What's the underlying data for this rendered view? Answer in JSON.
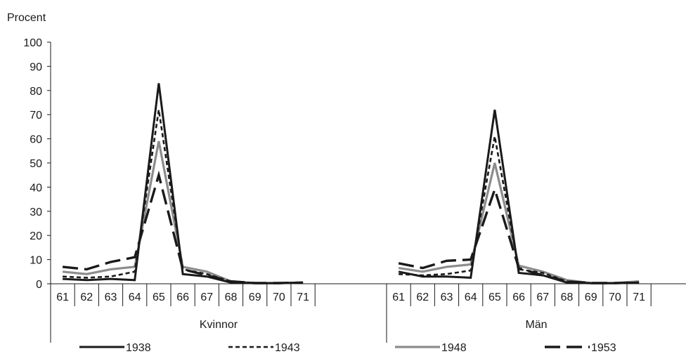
{
  "chart_data": {
    "type": "line",
    "ylabel": "Procent",
    "ylim": [
      0,
      100
    ],
    "yticks": [
      0,
      10,
      20,
      30,
      40,
      50,
      60,
      70,
      80,
      90,
      100
    ],
    "grid": false,
    "legend_position": "bottom",
    "panels": [
      {
        "name": "Kvinnor",
        "x": [
          "61",
          "62",
          "63",
          "64",
          "65",
          "66",
          "67",
          "68",
          "69",
          "70",
          "71"
        ],
        "series": [
          {
            "name": "1938",
            "values": [
              2,
              1.5,
              2,
              1.5,
              83,
              4,
              3,
              0.5,
              0.2,
              0.2,
              0.5
            ]
          },
          {
            "name": "1943",
            "values": [
              3,
              2.5,
              3,
              5,
              72,
              6,
              4,
              1,
              0.3,
              0.3,
              0.5
            ]
          },
          {
            "name": "1948",
            "values": [
              5,
              4,
              6,
              7,
              59,
              7,
              5,
              1,
              0.3,
              0.3,
              0.5
            ]
          },
          {
            "name": "1953",
            "values": [
              7,
              6,
              9,
              11,
              45,
              6,
              3.5,
              1,
              0.3,
              0.3,
              0.5
            ]
          }
        ]
      },
      {
        "name": "Män",
        "x": [
          "61",
          "62",
          "63",
          "64",
          "65",
          "66",
          "67",
          "68",
          "69",
          "70",
          "71"
        ],
        "series": [
          {
            "name": "1938",
            "values": [
              5,
              3,
              3,
              2.5,
              72,
              4.5,
              3.5,
              0.5,
              0.2,
              0.2,
              0.5
            ]
          },
          {
            "name": "1943",
            "values": [
              4,
              3.5,
              4,
              5.5,
              61,
              6,
              4.5,
              1,
              0.3,
              0.3,
              0.5
            ]
          },
          {
            "name": "1948",
            "values": [
              6.5,
              5,
              7,
              8,
              50,
              7.5,
              5,
              1.5,
              0.3,
              0.3,
              1
            ]
          },
          {
            "name": "1953",
            "values": [
              8.5,
              6.5,
              9.5,
              10,
              39,
              6.5,
              3.5,
              1,
              0.3,
              0.3,
              0.5
            ]
          }
        ]
      }
    ]
  },
  "series_styles": [
    {
      "name": "1938",
      "color": "#1a1a1a",
      "dash": "solid"
    },
    {
      "name": "1943",
      "color": "#1a1a1a",
      "dash": "short-dash"
    },
    {
      "name": "1948",
      "color": "#8c8c8c",
      "dash": "solid"
    },
    {
      "name": "1953",
      "color": "#1a1a1a",
      "dash": "long-dash"
    }
  ]
}
